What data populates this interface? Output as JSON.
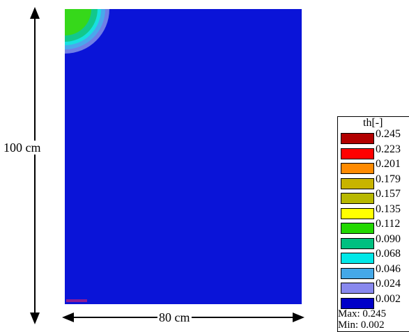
{
  "dimensions": {
    "height_label": "100 cm",
    "width_label": "80 cm"
  },
  "legend": {
    "title": "th[-]",
    "entries": [
      {
        "value": "0.245",
        "color": "#b20000"
      },
      {
        "value": "0.223",
        "color": "#ff0000"
      },
      {
        "value": "0.201",
        "color": "#ff8a00"
      },
      {
        "value": "0.179",
        "color": "#c8b400"
      },
      {
        "value": "0.157",
        "color": "#b8b800"
      },
      {
        "value": "0.135",
        "color": "#ffff00"
      },
      {
        "value": "0.112",
        "color": "#22d800"
      },
      {
        "value": "0.090",
        "color": "#00c080"
      },
      {
        "value": "0.068",
        "color": "#00e8e8"
      },
      {
        "value": "0.046",
        "color": "#44a8e8"
      },
      {
        "value": "0.024",
        "color": "#8888ee"
      },
      {
        "value": "0.002",
        "color": "#0000c8"
      }
    ],
    "max_label": "Max: 0.245",
    "min_label": "Min: 0.002"
  },
  "colors": {
    "domain_background": "#0a14d8",
    "contour_ring_outer": "#6f7fe6",
    "contour_ring_mid": "#4aa8ec",
    "contour_ring_inner": "#18e0e0",
    "contour_teal": "#12c88c",
    "contour_core": "#36d81a"
  }
}
